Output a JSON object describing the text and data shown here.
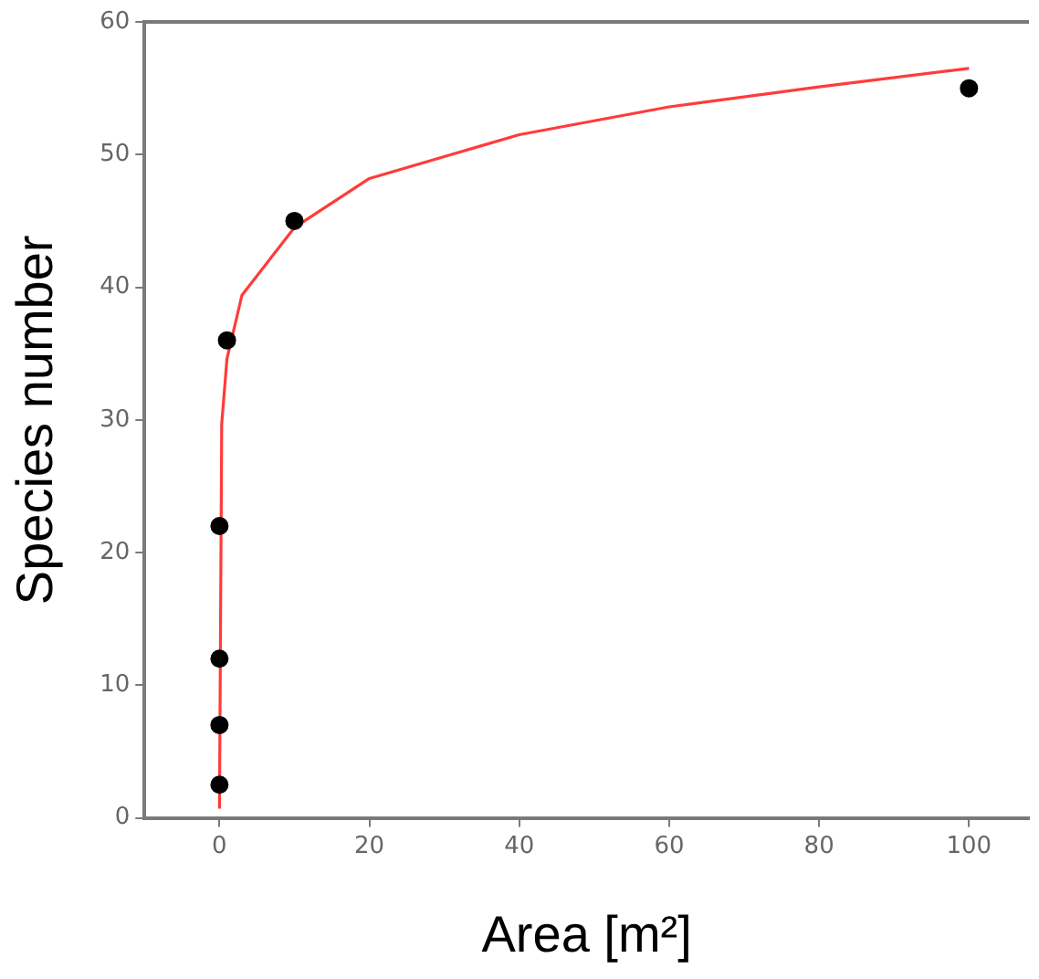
{
  "chart_data": {
    "type": "scatter",
    "xlabel": "Area [m²]",
    "ylabel": "Species number",
    "xlim": [
      -10,
      108
    ],
    "xticks": [
      0,
      20,
      40,
      60,
      80,
      100
    ],
    "ylim": [
      0,
      60
    ],
    "yticks": [
      0,
      10,
      20,
      30,
      40,
      50,
      60
    ],
    "grid": false,
    "legend": false,
    "series": [
      {
        "type": "line",
        "color": "#ff3b3b",
        "marker": "none",
        "x": [
          0,
          0.3,
          1,
          3,
          10,
          20,
          40,
          60,
          80,
          100
        ],
        "values": [
          0.7,
          29.7,
          34.6,
          39.4,
          44.5,
          48.2,
          51.5,
          53.6,
          55.1,
          56.5
        ]
      },
      {
        "type": "scatter",
        "color": "#000000",
        "marker": "circle",
        "x": [
          0,
          0,
          0,
          0,
          1,
          10,
          100
        ],
        "values": [
          2.5,
          7,
          12,
          22,
          36,
          45,
          55
        ]
      }
    ]
  }
}
